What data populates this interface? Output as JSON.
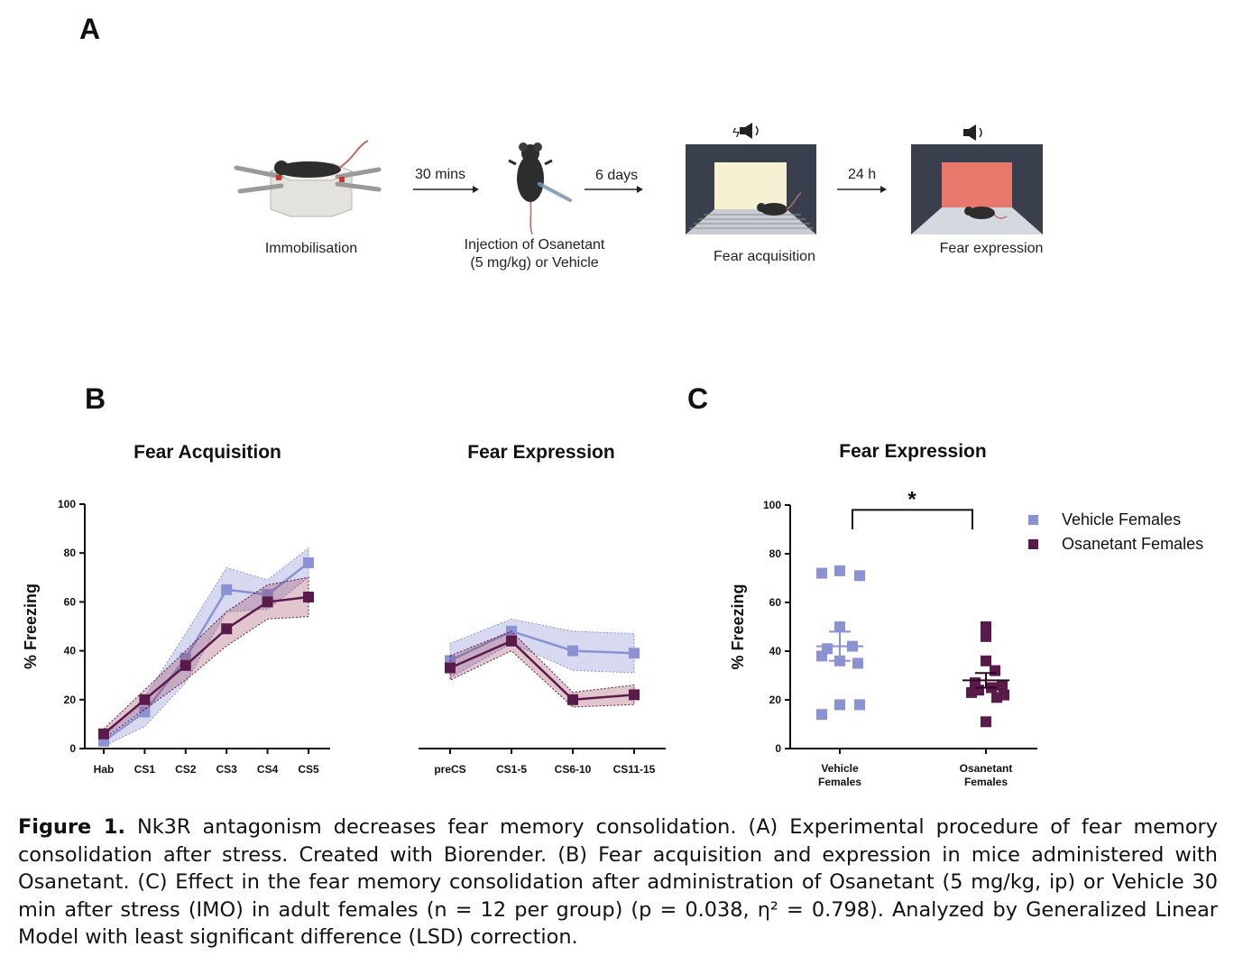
{
  "panels": {
    "a": "A",
    "b": "B",
    "c": "C"
  },
  "procedure": {
    "stages": [
      {
        "label": "Immobilisation"
      },
      {
        "label_line1": "Injection of Osanetant",
        "label_line2": "(5 mg/kg) or Vehicle"
      },
      {
        "label": "Fear acquisition"
      },
      {
        "label": "Fear expression"
      }
    ],
    "arrows": [
      "30 mins",
      "6 days",
      "24 h"
    ],
    "colors": {
      "box": "#3a3f4d",
      "acq_wall": "#f6f1d2",
      "exp_wall": "#e8786b",
      "mouse": "#2a2a2a"
    }
  },
  "chart_data": [
    {
      "type": "line",
      "title": "Fear Acquisition",
      "ylabel": "% Freezing",
      "ylim": [
        0,
        100
      ],
      "yticks": [
        "0",
        "20",
        "40",
        "60",
        "80",
        "100"
      ],
      "categories": [
        "Hab",
        "CS1",
        "CS2",
        "CS3",
        "CS4",
        "CS5"
      ],
      "series": [
        {
          "name": "Vehicle Females",
          "color": "#8a92d4",
          "values": [
            3,
            15,
            37,
            65,
            63,
            76
          ],
          "band": [
            2,
            6,
            10,
            9,
            6,
            6
          ]
        },
        {
          "name": "Osanetant Females",
          "color": "#5a1a4a",
          "values": [
            6,
            20,
            34,
            49,
            60,
            62
          ],
          "band": [
            2,
            4,
            6,
            7,
            7,
            8
          ]
        }
      ]
    },
    {
      "type": "line",
      "title": "Fear Expression",
      "ylim": [
        0,
        100
      ],
      "categories": [
        "preCS",
        "CS1-5",
        "CS6-10",
        "CS11-15"
      ],
      "series": [
        {
          "name": "Vehicle Females",
          "color": "#8a92d4",
          "values": [
            36,
            48,
            40,
            39
          ],
          "band": [
            7,
            5,
            8,
            8
          ]
        },
        {
          "name": "Osanetant Females",
          "color": "#5a1a4a",
          "values": [
            33,
            44,
            20,
            22
          ],
          "band": [
            5,
            4,
            3,
            4
          ]
        }
      ]
    },
    {
      "type": "scatter",
      "title": "Fear Expression",
      "ylabel": "% Freezing",
      "ylim": [
        0,
        100
      ],
      "yticks": [
        "0",
        "20",
        "40",
        "60",
        "80",
        "100"
      ],
      "categories": [
        [
          "Vehicle",
          "Females"
        ],
        [
          "Osanetant",
          "Females"
        ]
      ],
      "significance": "*",
      "legend": {
        "position": "top-right"
      },
      "series": [
        {
          "name": "Vehicle Females",
          "color": "#8a92d4",
          "mean": 42,
          "sem": 6,
          "values": [
            72,
            73,
            71,
            50,
            42,
            41,
            38,
            36,
            35,
            18,
            18,
            14
          ]
        },
        {
          "name": "Osanetant Females",
          "color": "#5a1a4a",
          "mean": 28,
          "sem": 3,
          "values": [
            50,
            46,
            36,
            32,
            27,
            26,
            25,
            24,
            23,
            22,
            21,
            11
          ]
        }
      ]
    }
  ],
  "caption": {
    "label": "Figure 1.",
    "text": " Nk3R antagonism decreases fear memory consolidation. (A) Experimental procedure of fear memory consolidation after stress. Created with Biorender. (B) Fear acquisition and expression in mice administered with Osanetant. (C) Effect in the fear memory consolidation after administration of Osanetant (5 mg/kg, ip) or Vehicle 30 min after stress (IMO) in adult females (n = 12 per group) (p = 0.038, η² = 0.798). Analyzed by Generalized Linear Model with least significant difference (LSD) correction."
  }
}
